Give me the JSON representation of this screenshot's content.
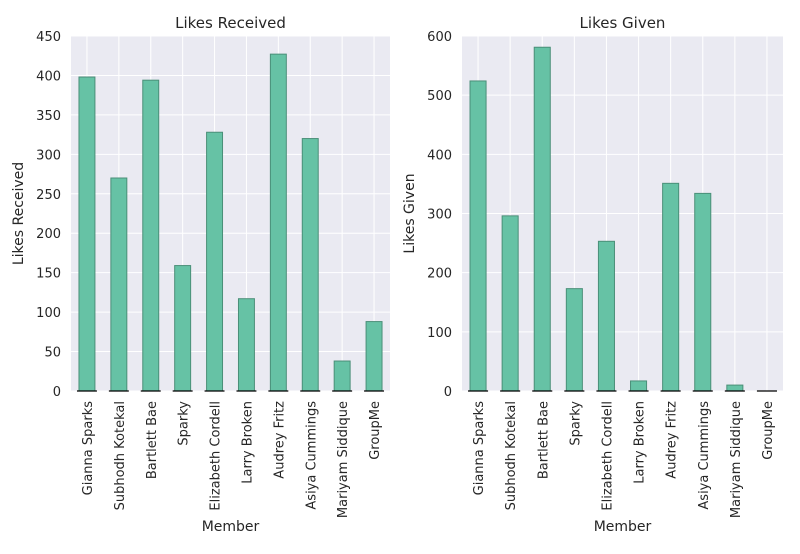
{
  "chart_data": [
    {
      "type": "bar",
      "title": "Likes Received",
      "xlabel": "Member",
      "ylabel": "Likes Received",
      "ylim": [
        0,
        450
      ],
      "yticks": [
        0,
        50,
        100,
        150,
        200,
        250,
        300,
        350,
        400,
        450
      ],
      "grid": true,
      "categories": [
        "Gianna Sparks",
        "Subhodh Kotekal",
        "Bartlett Bae",
        "Sparky",
        "Elizabeth Cordell",
        "Larry Broken",
        "Audrey Fritz",
        "Asiya Cummings",
        "Mariyam Siddique",
        "GroupMe"
      ],
      "values": [
        398,
        270,
        394,
        159,
        328,
        117,
        427,
        320,
        38,
        88
      ]
    },
    {
      "type": "bar",
      "title": "Likes Given",
      "xlabel": "Member",
      "ylabel": "Likes Given",
      "ylim": [
        0,
        600
      ],
      "yticks": [
        0,
        100,
        200,
        300,
        400,
        500,
        600
      ],
      "grid": true,
      "categories": [
        "Gianna Sparks",
        "Subhodh Kotekal",
        "Bartlett Bae",
        "Sparky",
        "Elizabeth Cordell",
        "Larry Broken",
        "Audrey Fritz",
        "Asiya Cummings",
        "Mariyam Siddique",
        "GroupMe"
      ],
      "values": [
        524,
        296,
        581,
        173,
        253,
        17,
        351,
        334,
        10,
        0
      ]
    }
  ],
  "colors": {
    "bar_fill": "#66c2a5",
    "bar_edge": "#4a8f78",
    "plot_bg": "#eaeaf2",
    "grid": "#ffffff",
    "text": "#262626"
  }
}
